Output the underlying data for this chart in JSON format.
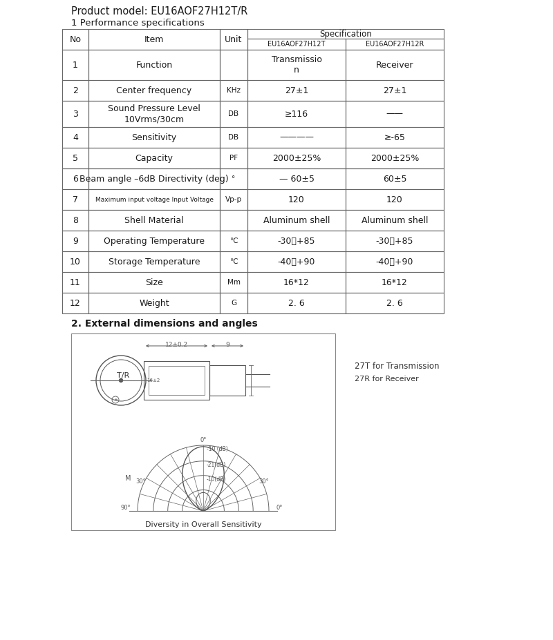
{
  "title1": "Product model: EU16AOF27H12T/R",
  "title2": "1 Performance specifications",
  "title3": "2. External dimensions and angles",
  "rows": [
    [
      "1",
      "Function",
      "",
      "Transmissio\nn",
      "Receiver"
    ],
    [
      "2",
      "Center frequency",
      "KHz",
      "27±1",
      "27±1"
    ],
    [
      "3",
      "Sound Pressure Level\n10Vrms/30cm",
      "DB",
      "≥116",
      "——"
    ],
    [
      "4",
      "Sensitivity",
      "DB",
      "————",
      "≥-65"
    ],
    [
      "5",
      "Capacity",
      "PF",
      "2000±25%",
      "2000±25%"
    ],
    [
      "6",
      "Beam angle –6dB Directivity (deg)",
      "°",
      "— 60±5",
      "60±5"
    ],
    [
      "7",
      "Maximum input voltage Input Voltage",
      "Vp-p",
      "120",
      "120"
    ],
    [
      "8",
      "Shell Material",
      "",
      "Aluminum shell",
      "Aluminum shell"
    ],
    [
      "9",
      "Operating Temperature",
      "℃",
      "-30～+85",
      "-30～+85"
    ],
    [
      "10",
      "Storage Temperature",
      "℃",
      "-40～+90",
      "-40～+90"
    ],
    [
      "11",
      "Size",
      "Mm",
      "16*12",
      "16*12"
    ],
    [
      "12",
      "Weight",
      "G",
      "2. 6",
      "2. 6"
    ]
  ],
  "note1": "27T for Transmission",
  "note2": "27R for Receiver",
  "caption": "Diversity in Overall Sensitivity",
  "bg_color": "#ffffff",
  "line_color": "#666666",
  "text_color": "#1a1a1a"
}
